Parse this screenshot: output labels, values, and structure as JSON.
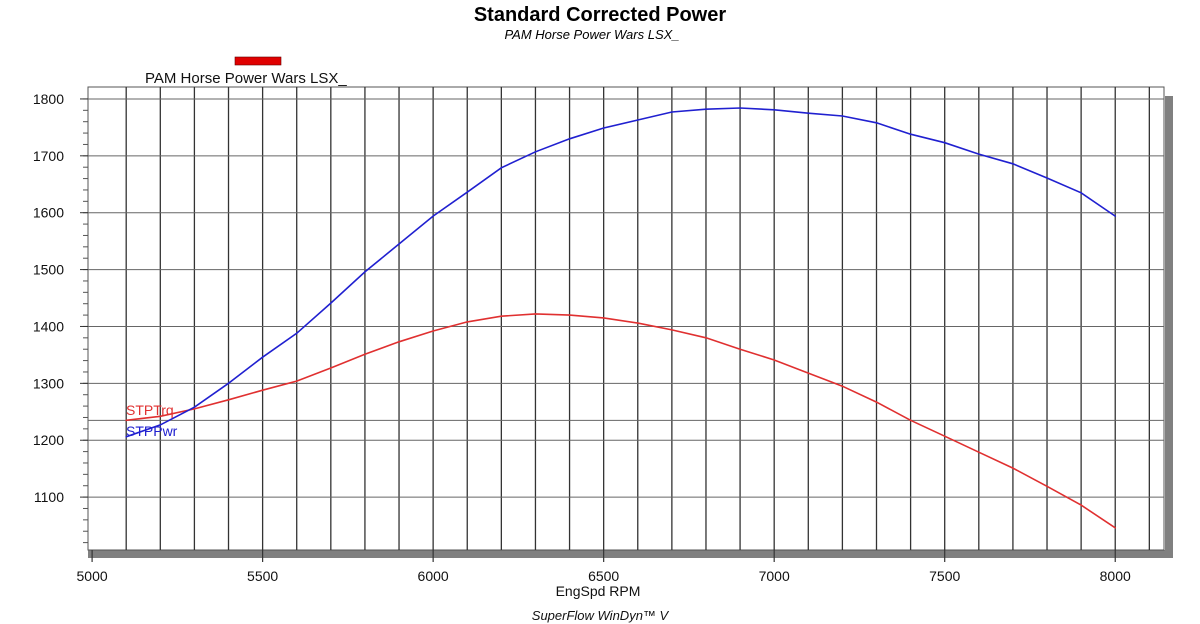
{
  "chart_data": {
    "type": "line",
    "title": "Standard Corrected Power",
    "subtitle": "PAM Horse Power Wars LSX_",
    "legend": {
      "label": "PAM Horse Power Wars LSX_",
      "color": "#e00000",
      "placement": "top-left"
    },
    "xlabel": "EngSpd RPM",
    "footer": "SuperFlow WinDyn™ V",
    "xlim": [
      4988,
      8143
    ],
    "ylim": [
      1007,
      1821
    ],
    "x_ticks": [
      5000,
      5500,
      6000,
      6500,
      7000,
      7500,
      8000
    ],
    "x_tick_labels": [
      "5000",
      "5500",
      "6000",
      "6500",
      "7000",
      "7500",
      "8000"
    ],
    "y_ticks": [
      1100,
      1200,
      1300,
      1400,
      1500,
      1600,
      1700,
      1800
    ],
    "y_tick_labels": [
      "1100",
      "1200",
      "1300",
      "1400",
      "1500",
      "1600",
      "1700",
      "1800"
    ],
    "extra_hgrid": [
      1235
    ],
    "grid": true,
    "x": [
      5100,
      5200,
      5300,
      5400,
      5500,
      5600,
      5700,
      5800,
      5900,
      6000,
      6100,
      6200,
      6300,
      6400,
      6500,
      6600,
      6700,
      6800,
      6900,
      7000,
      7100,
      7200,
      7300,
      7400,
      7500,
      7600,
      7700,
      7800,
      7900,
      8000
    ],
    "series": [
      {
        "name": "STPTrq",
        "color": "#e03030",
        "values": [
          1235,
          1242,
          1255,
          1271,
          1288,
          1304,
          1327,
          1351,
          1373,
          1392,
          1408,
          1418,
          1422,
          1420,
          1415,
          1406,
          1394,
          1380,
          1360,
          1341,
          1318,
          1295,
          1267,
          1235,
          1207,
          1179,
          1151,
          1119,
          1086,
          1046
        ]
      },
      {
        "name": "STPPwr",
        "color": "#2020d0",
        "values": [
          1206,
          1227,
          1258,
          1300,
          1346,
          1388,
          1441,
          1496,
          1545,
          1594,
          1636,
          1679,
          1707,
          1730,
          1749,
          1763,
          1777,
          1782,
          1784,
          1781,
          1775,
          1770,
          1758,
          1738,
          1723,
          1703,
          1686,
          1661,
          1635,
          1594
        ]
      }
    ]
  }
}
